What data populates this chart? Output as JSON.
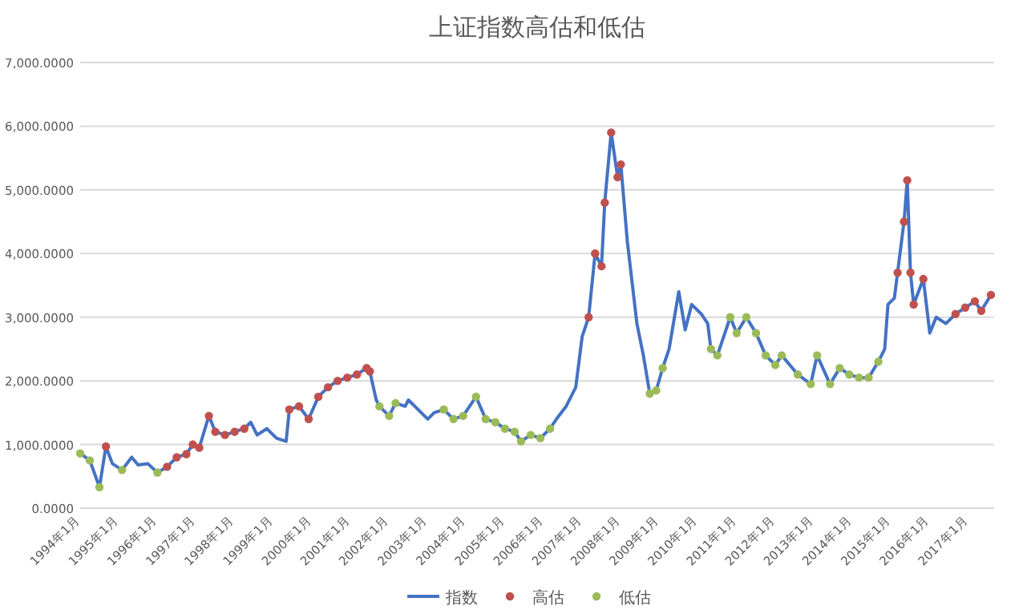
{
  "chart_data": {
    "type": "line",
    "title": "上证指数高估和低估",
    "x": [
      "1994-01",
      "1994-04",
      "1994-07",
      "1994-09",
      "1994-11",
      "1995-02",
      "1995-05",
      "1995-07",
      "1995-10",
      "1996-01",
      "1996-04",
      "1996-07",
      "1996-10",
      "1996-12",
      "1997-02",
      "1997-05",
      "1997-07",
      "1997-10",
      "1998-01",
      "1998-04",
      "1998-06",
      "1998-08",
      "1998-11",
      "1999-02",
      "1999-05",
      "1999-06",
      "1999-09",
      "1999-12",
      "2000-03",
      "2000-06",
      "2000-09",
      "2000-12",
      "2001-03",
      "2001-06",
      "2001-07",
      "2001-09",
      "2001-10",
      "2002-01",
      "2002-03",
      "2002-06",
      "2002-07",
      "2002-10",
      "2003-01",
      "2003-03",
      "2003-06",
      "2003-09",
      "2003-12",
      "2004-04",
      "2004-07",
      "2004-10",
      "2005-01",
      "2005-04",
      "2005-06",
      "2005-09",
      "2005-12",
      "2006-03",
      "2006-05",
      "2006-08",
      "2006-11",
      "2007-01",
      "2007-03",
      "2007-05",
      "2007-07",
      "2007-08",
      "2007-10",
      "2007-12",
      "2008-01",
      "2008-03",
      "2008-06",
      "2008-08",
      "2008-10",
      "2008-12",
      "2009-02",
      "2009-04",
      "2009-07",
      "2009-09",
      "2009-11",
      "2010-02",
      "2010-04",
      "2010-05",
      "2010-07",
      "2010-11",
      "2011-01",
      "2011-04",
      "2011-07",
      "2011-10",
      "2012-01",
      "2012-03",
      "2012-08",
      "2012-12",
      "2013-02",
      "2013-06",
      "2013-09",
      "2013-12",
      "2014-03",
      "2014-06",
      "2014-09",
      "2014-11",
      "2014-12",
      "2015-02",
      "2015-03",
      "2015-05",
      "2015-06",
      "2015-07",
      "2015-08",
      "2015-11",
      "2016-01",
      "2016-03",
      "2016-06",
      "2016-09",
      "2016-12",
      "2017-03",
      "2017-05",
      "2017-08"
    ],
    "series": [
      {
        "name": "指数",
        "color": "#4472c4",
        "values": [
          860,
          750,
          330,
          970,
          700,
          600,
          800,
          680,
          700,
          560,
          650,
          800,
          850,
          1000,
          950,
          1450,
          1200,
          1150,
          1200,
          1250,
          1350,
          1150,
          1250,
          1100,
          1050,
          1550,
          1600,
          1400,
          1750,
          1900,
          2000,
          2050,
          2100,
          2200,
          2150,
          1700,
          1600,
          1450,
          1650,
          1600,
          1700,
          1550,
          1400,
          1500,
          1550,
          1400,
          1450,
          1750,
          1400,
          1350,
          1250,
          1200,
          1050,
          1150,
          1100,
          1250,
          1400,
          1600,
          1900,
          2700,
          3000,
          4000,
          3800,
          4800,
          5900,
          5200,
          5400,
          4200,
          2900,
          2400,
          1800,
          1850,
          2200,
          2500,
          3400,
          2800,
          3200,
          3050,
          2900,
          2500,
          2400,
          3000,
          2750,
          3000,
          2750,
          2400,
          2250,
          2400,
          2100,
          1950,
          2400,
          1950,
          2200,
          2100,
          2050,
          2050,
          2300,
          2500,
          3200,
          3300,
          3700,
          4500,
          5150,
          3700,
          3200,
          3600,
          2750,
          3000,
          2900,
          3050,
          3150,
          3250,
          3100,
          3350
        ]
      },
      {
        "name": "高估",
        "type": "scatter",
        "color": "#c0504d",
        "marker": "circle",
        "x": [
          "1994-09",
          "1996-04",
          "1996-07",
          "1996-10",
          "1996-12",
          "1997-02",
          "1997-05",
          "1997-07",
          "1997-10",
          "1998-01",
          "1998-04",
          "1999-06",
          "1999-09",
          "1999-12",
          "2000-03",
          "2000-06",
          "2000-09",
          "2000-12",
          "2001-03",
          "2001-06",
          "2001-07",
          "2007-03",
          "2007-05",
          "2007-07",
          "2007-08",
          "2007-10",
          "2007-12",
          "2008-01",
          "2015-03",
          "2015-05",
          "2015-06",
          "2015-07",
          "2015-08",
          "2015-11",
          "2016-09",
          "2016-12",
          "2017-03",
          "2017-05",
          "2017-08"
        ],
        "values": [
          970,
          650,
          800,
          850,
          1000,
          950,
          1450,
          1200,
          1150,
          1200,
          1250,
          1550,
          1600,
          1400,
          1750,
          1900,
          2000,
          2050,
          2100,
          2200,
          2150,
          3000,
          4000,
          3800,
          4800,
          5900,
          5200,
          5400,
          3700,
          4500,
          5150,
          3700,
          3200,
          3600,
          3050,
          3150,
          3250,
          3100,
          3350
        ]
      },
      {
        "name": "低估",
        "type": "scatter",
        "color": "#9bbb59",
        "marker": "circle",
        "x": [
          "1994-01",
          "1994-04",
          "1994-07",
          "1995-02",
          "1996-01",
          "2001-10",
          "2002-01",
          "2002-03",
          "2003-06",
          "2003-09",
          "2003-12",
          "2004-04",
          "2004-07",
          "2004-10",
          "2005-01",
          "2005-04",
          "2005-06",
          "2005-09",
          "2005-12",
          "2006-03",
          "2008-10",
          "2008-12",
          "2009-02",
          "2010-05",
          "2010-07",
          "2010-11",
          "2011-01",
          "2011-04",
          "2011-07",
          "2011-10",
          "2012-01",
          "2012-03",
          "2012-08",
          "2012-12",
          "2013-02",
          "2013-06",
          "2013-09",
          "2013-12",
          "2014-03",
          "2014-06",
          "2014-09"
        ],
        "values": [
          860,
          750,
          330,
          600,
          560,
          1600,
          1450,
          1650,
          1550,
          1400,
          1450,
          1750,
          1400,
          1350,
          1250,
          1200,
          1050,
          1150,
          1100,
          1250,
          1800,
          1850,
          2200,
          2500,
          2400,
          3000,
          2750,
          3000,
          2750,
          2400,
          2250,
          2400,
          2100,
          1950,
          2400,
          1950,
          2200,
          2100,
          2050,
          2050,
          2300
        ]
      }
    ],
    "xlim": [
      "1994-01",
      "2017-09"
    ],
    "xticks": [
      {
        "value": "1994-01",
        "label": "1994年1月"
      },
      {
        "value": "1995-01",
        "label": "1995年1月"
      },
      {
        "value": "1996-01",
        "label": "1996年1月"
      },
      {
        "value": "1997-01",
        "label": "1997年1月"
      },
      {
        "value": "1998-01",
        "label": "1998年1月"
      },
      {
        "value": "1999-01",
        "label": "1999年1月"
      },
      {
        "value": "2000-01",
        "label": "2000年1月"
      },
      {
        "value": "2001-01",
        "label": "2001年1月"
      },
      {
        "value": "2002-01",
        "label": "2002年1月"
      },
      {
        "value": "2003-01",
        "label": "2003年1月"
      },
      {
        "value": "2004-01",
        "label": "2004年1月"
      },
      {
        "value": "2005-01",
        "label": "2005年1月"
      },
      {
        "value": "2006-01",
        "label": "2006年1月"
      },
      {
        "value": "2007-01",
        "label": "2007年1月"
      },
      {
        "value": "2008-01",
        "label": "2008年1月"
      },
      {
        "value": "2009-01",
        "label": "2009年1月"
      },
      {
        "value": "2010-01",
        "label": "2010年1月"
      },
      {
        "value": "2011-01",
        "label": "2011年1月"
      },
      {
        "value": "2012-01",
        "label": "2012年1月"
      },
      {
        "value": "2013-01",
        "label": "2013年1月"
      },
      {
        "value": "2014-01",
        "label": "2014年1月"
      },
      {
        "value": "2015-01",
        "label": "2015年1月"
      },
      {
        "value": "2016-01",
        "label": "2016年1月"
      },
      {
        "value": "2017-01",
        "label": "2017年1月"
      }
    ],
    "ylim": [
      0,
      7000
    ],
    "yticks": [
      {
        "value": 0,
        "label": "0.0000"
      },
      {
        "value": 1000,
        "label": "1,000.0000"
      },
      {
        "value": 2000,
        "label": "2,000.0000"
      },
      {
        "value": 3000,
        "label": "3,000.0000"
      },
      {
        "value": 4000,
        "label": "4,000.0000"
      },
      {
        "value": 5000,
        "label": "5,000.0000"
      },
      {
        "value": 6000,
        "label": "6,000.0000"
      },
      {
        "value": 7000,
        "label": "7,000.0000"
      }
    ],
    "grid": "y",
    "legend": "bottom"
  }
}
